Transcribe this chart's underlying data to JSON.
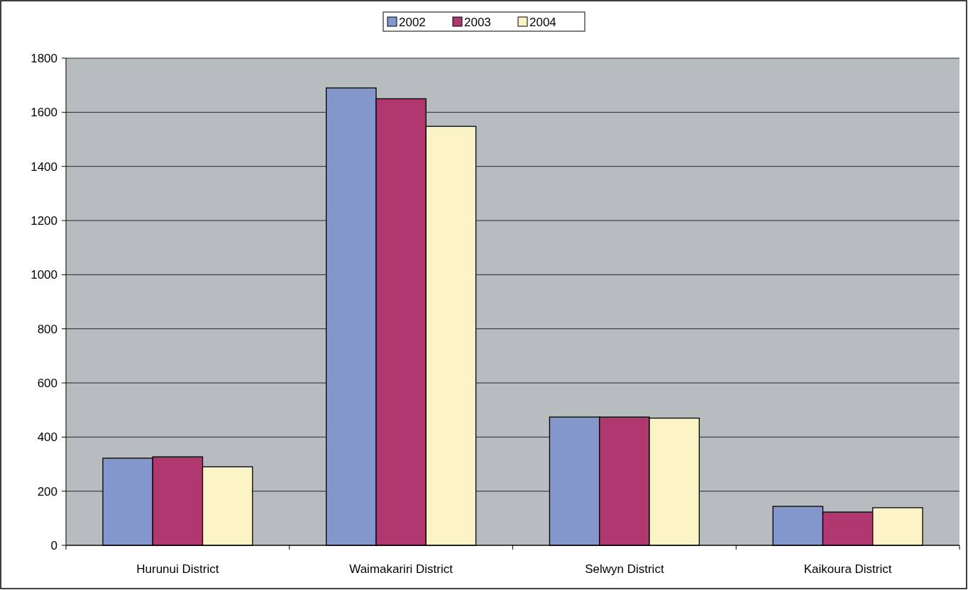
{
  "chart_data": {
    "type": "bar",
    "categories": [
      "Hurunui District",
      "Waimakariri District",
      "Selwyn District",
      "Kaikoura District"
    ],
    "series": [
      {
        "name": "2002",
        "color": "#8497cc",
        "values": [
          322,
          1690,
          474,
          144
        ]
      },
      {
        "name": "2003",
        "color": "#b0386f",
        "values": [
          327,
          1650,
          474,
          123
        ]
      },
      {
        "name": "2004",
        "color": "#f9f3c5",
        "values": [
          290,
          1548,
          470,
          139
        ]
      }
    ],
    "ylim": [
      0,
      1800
    ],
    "yticks": [
      0,
      200,
      400,
      600,
      800,
      1000,
      1200,
      1400,
      1600,
      1800
    ],
    "grid": "y",
    "legend": "top"
  }
}
